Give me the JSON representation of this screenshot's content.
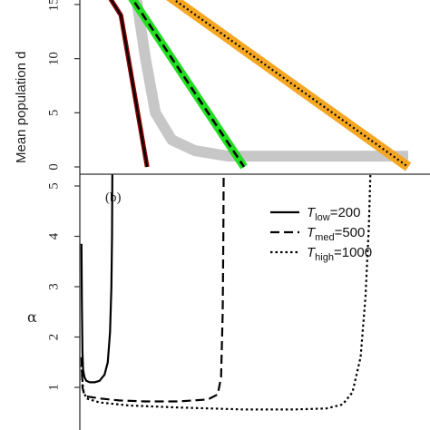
{
  "chart_data": [
    {
      "type": "line",
      "panel": "a",
      "ylabel": "Mean population d",
      "ylim": [
        0,
        17
      ],
      "xlim": [
        0,
        1000
      ],
      "yticks": [
        "0",
        "5",
        "10",
        "15"
      ],
      "grid": false,
      "colors": {
        "orange": "#f5a623",
        "green": "#22dd22",
        "gray": "#bdbdbd",
        "red": "#8b0000"
      },
      "series": [
        {
          "style": "solid-red",
          "x": [
            0,
            125,
            205
          ],
          "y": [
            20,
            14,
            0
          ]
        },
        {
          "style": "gray-band",
          "x": [
            150,
            180,
            200,
            230,
            280,
            350,
            450,
            600,
            800,
            1000
          ],
          "y": [
            20,
            14,
            10,
            5,
            2.5,
            1.5,
            1,
            1,
            1,
            1
          ]
        },
        {
          "style": "dashed-green",
          "x": [
            0,
            145,
            500
          ],
          "y": [
            20,
            16.2,
            0
          ]
        },
        {
          "style": "dotted-orange",
          "x": [
            0,
            225,
            1000
          ],
          "y": [
            20,
            16.8,
            0
          ]
        }
      ]
    },
    {
      "type": "line",
      "panel": "b",
      "label": "(b)",
      "ylabel": "α",
      "ylim": [
        0,
        5.1
      ],
      "xlim": [
        0,
        1000
      ],
      "yticks": [
        "1",
        "2",
        "3",
        "4",
        "5"
      ],
      "grid": false,
      "legend_position": "top-right",
      "legend": [
        {
          "style": "solid",
          "symbol": "T",
          "sub": "low",
          "value": "=200"
        },
        {
          "style": "dashed",
          "symbol": "T",
          "sub": "med",
          "value": "=500"
        },
        {
          "style": "dotted",
          "symbol": "T",
          "sub": "high",
          "value": "=1000"
        }
      ],
      "series": [
        {
          "style": "solid",
          "x": [
            5,
            6,
            8,
            10,
            14,
            20,
            30,
            45,
            60,
            75,
            85,
            92,
            96,
            98,
            99,
            100
          ],
          "y": [
            3.85,
            2.8,
            1.7,
            1.35,
            1.2,
            1.13,
            1.1,
            1.1,
            1.13,
            1.25,
            1.5,
            2.1,
            3.0,
            4.0,
            5.1,
            6.2
          ]
        },
        {
          "style": "dashed",
          "x": [
            5,
            8,
            12,
            20,
            60,
            120,
            200,
            300,
            390,
            420,
            430,
            435,
            437,
            438
          ],
          "y": [
            1.6,
            1.0,
            0.9,
            0.82,
            0.78,
            0.74,
            0.72,
            0.72,
            0.76,
            0.86,
            1.2,
            2.5,
            4.0,
            5.4
          ]
        },
        {
          "style": "dotted",
          "x": [
            5,
            10,
            20,
            60,
            150,
            300,
            500,
            650,
            750,
            800,
            830,
            855,
            870,
            880,
            885
          ],
          "y": [
            1.45,
            0.95,
            0.78,
            0.7,
            0.64,
            0.6,
            0.56,
            0.56,
            0.58,
            0.66,
            0.9,
            1.6,
            2.8,
            4.2,
            5.3
          ]
        }
      ]
    }
  ]
}
